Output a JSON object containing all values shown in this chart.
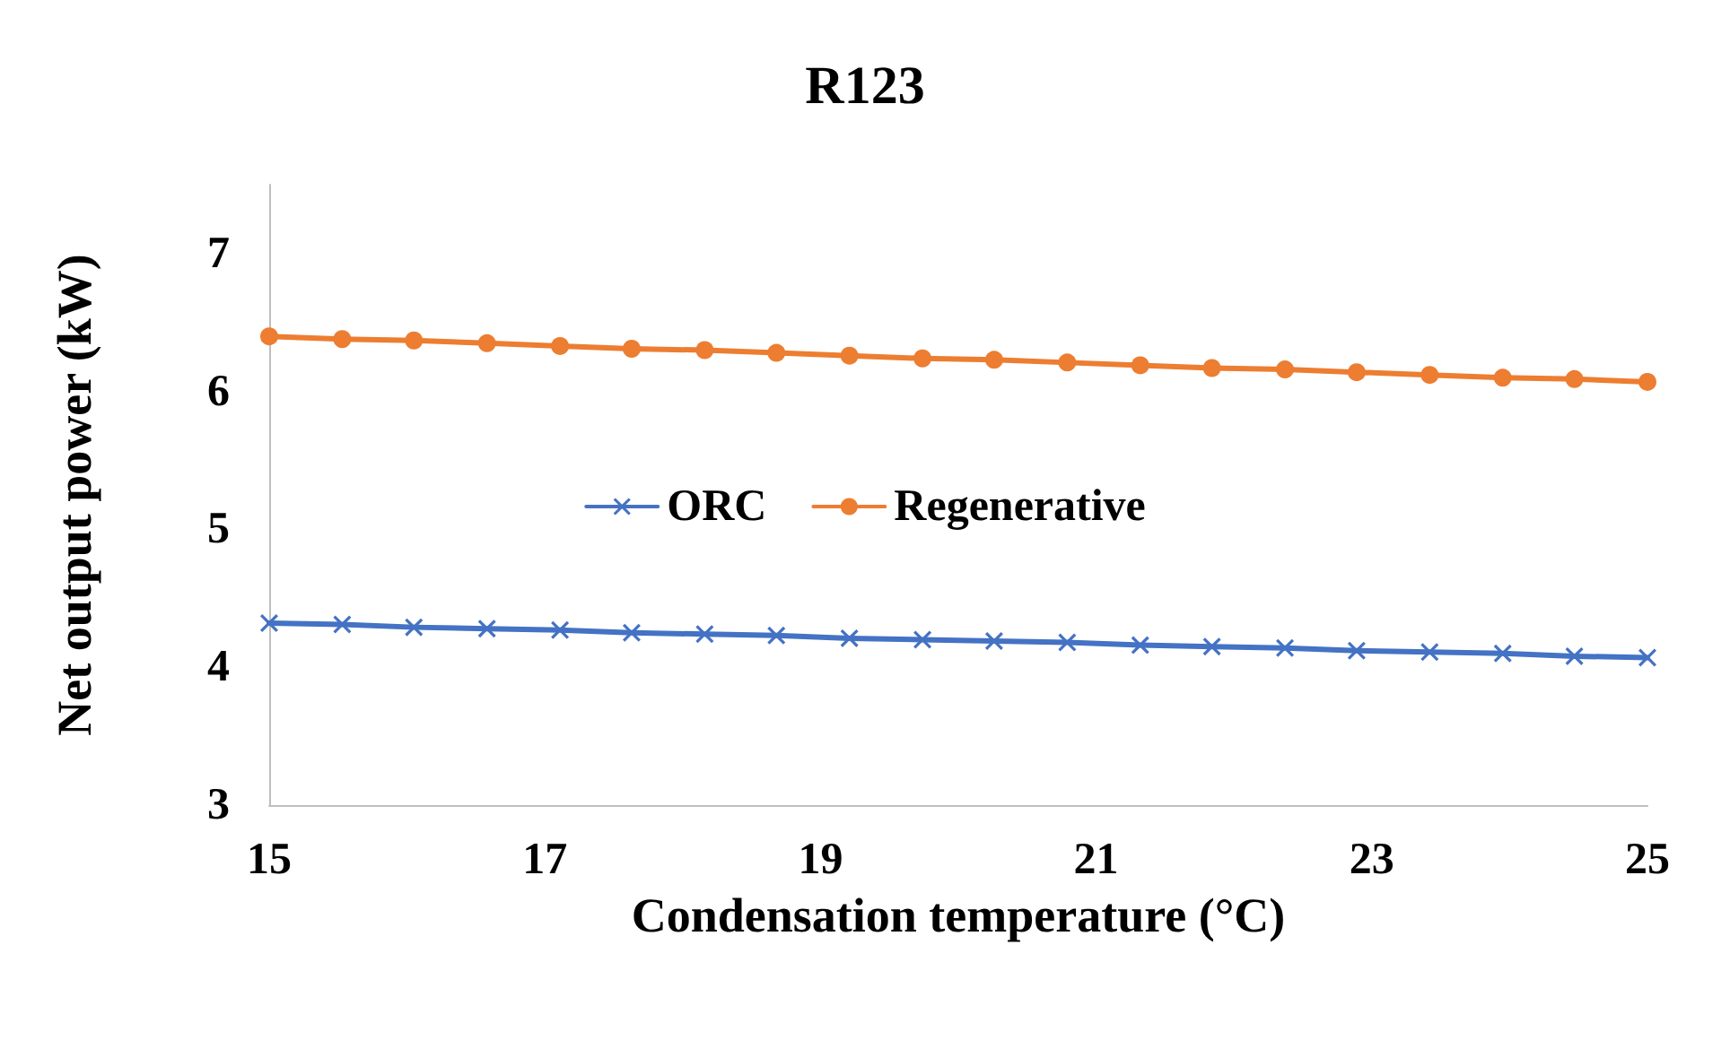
{
  "chart_data": {
    "type": "line",
    "title": "R123",
    "xlabel": "Condensation temperature (°C)",
    "ylabel": "Net output power (kW)",
    "x": [
      15,
      15.53,
      16.05,
      16.58,
      17.11,
      17.63,
      18.16,
      18.68,
      19.21,
      19.74,
      20.26,
      20.79,
      21.32,
      21.84,
      22.37,
      22.89,
      23.42,
      23.95,
      24.47,
      25
    ],
    "series": [
      {
        "name": "ORC",
        "color": "#4472c4",
        "marker": "cross",
        "values": [
          4.32,
          4.31,
          4.29,
          4.28,
          4.27,
          4.25,
          4.24,
          4.23,
          4.21,
          4.2,
          4.19,
          4.18,
          4.16,
          4.15,
          4.14,
          4.12,
          4.11,
          4.1,
          4.08,
          4.07
        ]
      },
      {
        "name": "Regenerative",
        "color": "#ed7d31",
        "marker": "circle",
        "values": [
          6.4,
          6.38,
          6.37,
          6.35,
          6.33,
          6.31,
          6.3,
          6.28,
          6.26,
          6.24,
          6.23,
          6.21,
          6.19,
          6.17,
          6.16,
          6.14,
          6.12,
          6.1,
          6.09,
          6.07
        ]
      }
    ],
    "xlim": [
      15,
      25
    ],
    "xticks": [
      15,
      17,
      19,
      21,
      23,
      25
    ],
    "ylim": [
      3,
      7.5
    ],
    "yticks": [
      3,
      4,
      5,
      6,
      7
    ],
    "grid": false,
    "legend": "center",
    "line_style": "solid"
  }
}
